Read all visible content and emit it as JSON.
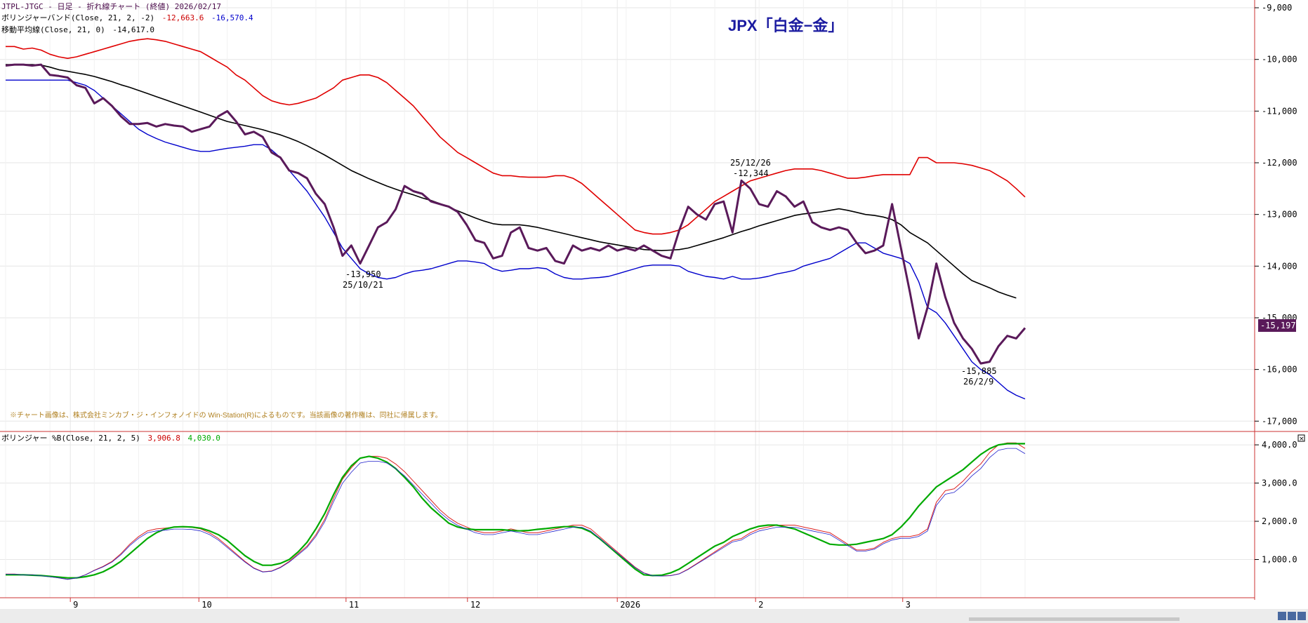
{
  "header": {
    "line1": "JTPL-JTGC - 日足 - 折れ線チャート (終値)  2026/02/17",
    "bb_label": "ボリンジャーバンド(Close, 21, 2, -2)",
    "bb_upper": "-12,663.6",
    "bb_lower": "-16,570.4",
    "ma_label": "移動平均線(Close, 21, 0)",
    "ma_value": "-14,617.0",
    "lower_label": "ボリンジャー %B(Close, 21, 2, 5)",
    "lower_v1": "3,906.8",
    "lower_v2": "4,030.0"
  },
  "title": "JPX「白金−金」",
  "copyright": "※チャート画像は、株式会社ミンカブ・ジ・インフォノイドの Win-Station(R)によるものです。当該画像の著作権は、同社に帰属します。",
  "last_price_badge": "-15,197",
  "annotations": {
    "low1_value": "-13,950",
    "low1_date": "25/10/21",
    "high_date": "25/12/26",
    "high_value": "-12,344",
    "low2_value": "-15,885",
    "low2_date": "26/2/9"
  },
  "colors": {
    "price": "#5a1a5a",
    "upper_band": "#e00000",
    "lower_band": "#0000cc",
    "moving_average": "#000000",
    "pctb_fast": "#dd2222",
    "pctb_slow": "#00aa00",
    "title": "#1a1aa0",
    "copyright": "#b08020"
  },
  "chart_data": [
    {
      "type": "line",
      "ylim": [
        -17200,
        -8850
      ],
      "yticks": [
        -9000,
        -10000,
        -11000,
        -12000,
        -13000,
        -14000,
        -15000,
        -16000,
        -17000
      ],
      "ytick_labels": [
        "-9,000",
        "-10,000",
        "-11,000",
        "-12,000",
        "-13,000",
        "-14,000",
        "-15,000",
        "-16,000",
        "-17,000"
      ],
      "x_labels": [
        "9",
        "10",
        "11",
        "12",
        "2026",
        "2",
        "3"
      ],
      "series": [
        {
          "key": "price",
          "values": [
            -10120,
            -10100,
            -10100,
            -10120,
            -10100,
            -10300,
            -10320,
            -10350,
            -10500,
            -10550,
            -10850,
            -10750,
            -10900,
            -11100,
            -11250,
            -11250,
            -11230,
            -11300,
            -11250,
            -11280,
            -11300,
            -11400,
            -11350,
            -11300,
            -11100,
            -11000,
            -11200,
            -11450,
            -11400,
            -11500,
            -11800,
            -11900,
            -12150,
            -12200,
            -12300,
            -12600,
            -12800,
            -13250,
            -13800,
            -13600,
            -13950,
            -13600,
            -13250,
            -13150,
            -12900,
            -12450,
            -12550,
            -12600,
            -12750,
            -12800,
            -12850,
            -12950,
            -13200,
            -13500,
            -13550,
            -13850,
            -13800,
            -13350,
            -13250,
            -13650,
            -13700,
            -13650,
            -13900,
            -13950,
            -13600,
            -13700,
            -13650,
            -13700,
            -13600,
            -13700,
            -13650,
            -13700,
            -13600,
            -13700,
            -13800,
            -13850,
            -13300,
            -12850,
            -13000,
            -13100,
            -12800,
            -12750,
            -13350,
            -12344,
            -12500,
            -12800,
            -12850,
            -12550,
            -12650,
            -12850,
            -12750,
            -13150,
            -13250,
            -13300,
            -13250,
            -13300,
            -13550,
            -13750,
            -13700,
            -13600,
            -12800,
            -13650,
            -14500,
            -15400,
            -14800,
            -13950,
            -14600,
            -15100,
            -15400,
            -15600,
            -15885,
            -15850,
            -15550,
            -15350,
            -15400,
            -15197
          ]
        },
        {
          "key": "upper_band",
          "values": [
            -9750,
            -9750,
            -9800,
            -9780,
            -9820,
            -9900,
            -9950,
            -9980,
            -9950,
            -9900,
            -9850,
            -9800,
            -9750,
            -9700,
            -9650,
            -9620,
            -9600,
            -9620,
            -9650,
            -9700,
            -9750,
            -9800,
            -9850,
            -9950,
            -10050,
            -10150,
            -10300,
            -10400,
            -10550,
            -10700,
            -10800,
            -10850,
            -10880,
            -10850,
            -10800,
            -10750,
            -10650,
            -10550,
            -10400,
            -10350,
            -10300,
            -10300,
            -10350,
            -10450,
            -10600,
            -10750,
            -10900,
            -11100,
            -11300,
            -11500,
            -11650,
            -11800,
            -11900,
            -12000,
            -12100,
            -12200,
            -12250,
            -12250,
            -12270,
            -12280,
            -12280,
            -12280,
            -12250,
            -12250,
            -12300,
            -12400,
            -12550,
            -12700,
            -12850,
            -13000,
            -13150,
            -13300,
            -13350,
            -13380,
            -13380,
            -13350,
            -13300,
            -13200,
            -13050,
            -12900,
            -12750,
            -12650,
            -12550,
            -12450,
            -12350,
            -12300,
            -12250,
            -12200,
            -12150,
            -12120,
            -12120,
            -12120,
            -12150,
            -12200,
            -12250,
            -12300,
            -12300,
            -12280,
            -12250,
            -12230,
            -12230,
            -12230,
            -12230,
            -11900,
            -11900,
            -12000,
            -12000,
            -12000,
            -12020,
            -12050,
            -12100,
            -12150,
            -12250,
            -12350,
            -12500,
            -12663
          ]
        },
        {
          "key": "moving_average",
          "values": [
            -10100,
            -10100,
            -10100,
            -10100,
            -10110,
            -10150,
            -10200,
            -10230,
            -10260,
            -10290,
            -10330,
            -10380,
            -10430,
            -10490,
            -10540,
            -10600,
            -10660,
            -10720,
            -10780,
            -10840,
            -10900,
            -10960,
            -11020,
            -11080,
            -11140,
            -11200,
            -11240,
            -11280,
            -11320,
            -11360,
            -11410,
            -11460,
            -11520,
            -11590,
            -11670,
            -11760,
            -11850,
            -11950,
            -12050,
            -12150,
            -12230,
            -12310,
            -12380,
            -12450,
            -12510,
            -12570,
            -12620,
            -12680,
            -12730,
            -12790,
            -12860,
            -12930,
            -13000,
            -13070,
            -13130,
            -13180,
            -13200,
            -13200,
            -13200,
            -13220,
            -13250,
            -13290,
            -13330,
            -13370,
            -13410,
            -13450,
            -13490,
            -13530,
            -13560,
            -13590,
            -13620,
            -13650,
            -13680,
            -13690,
            -13700,
            -13690,
            -13680,
            -13650,
            -13600,
            -13550,
            -13500,
            -13450,
            -13390,
            -13330,
            -13280,
            -13220,
            -13170,
            -13120,
            -13070,
            -13020,
            -12990,
            -12970,
            -12950,
            -12920,
            -12890,
            -12920,
            -12960,
            -13000,
            -13020,
            -13050,
            -13100,
            -13200,
            -13350,
            -13450,
            -13550,
            -13700,
            -13850,
            -14000,
            -14150,
            -14280,
            -14350,
            -14420,
            -14500,
            -14560,
            -14617
          ]
        },
        {
          "key": "lower_band",
          "values": [
            -10400,
            -10400,
            -10400,
            -10400,
            -10400,
            -10400,
            -10400,
            -10400,
            -10450,
            -10500,
            -10600,
            -10750,
            -10900,
            -11050,
            -11200,
            -11350,
            -11450,
            -11530,
            -11600,
            -11650,
            -11700,
            -11750,
            -11780,
            -11780,
            -11750,
            -11720,
            -11700,
            -11680,
            -11650,
            -11650,
            -11750,
            -11900,
            -12150,
            -12350,
            -12550,
            -12800,
            -13050,
            -13350,
            -13650,
            -13850,
            -14050,
            -14150,
            -14220,
            -14250,
            -14220,
            -14150,
            -14100,
            -14080,
            -14050,
            -14000,
            -13950,
            -13900,
            -13900,
            -13920,
            -13950,
            -14050,
            -14100,
            -14080,
            -14050,
            -14050,
            -14030,
            -14050,
            -14150,
            -14220,
            -14250,
            -14250,
            -14230,
            -14220,
            -14200,
            -14150,
            -14100,
            -14050,
            -14000,
            -13980,
            -13980,
            -13980,
            -14000,
            -14100,
            -14150,
            -14200,
            -14220,
            -14250,
            -14200,
            -14250,
            -14250,
            -14230,
            -14200,
            -14150,
            -14120,
            -14080,
            -14000,
            -13950,
            -13900,
            -13850,
            -13750,
            -13650,
            -13550,
            -13550,
            -13650,
            -13750,
            -13800,
            -13850,
            -13950,
            -14300,
            -14800,
            -14900,
            -15100,
            -15350,
            -15600,
            -15850,
            -16000,
            -16100,
            -16250,
            -16400,
            -16500,
            -16570
          ]
        }
      ]
    },
    {
      "type": "line",
      "ylim": [
        0,
        4350
      ],
      "yticks": [
        1000,
        2000,
        3000,
        4000
      ],
      "ytick_labels": [
        "1,000.0",
        "2,000.0",
        "3,000.0",
        "4,000.0"
      ],
      "series": [
        {
          "key": "pctb_fast",
          "values": [
            620,
            620,
            600,
            600,
            580,
            550,
            520,
            480,
            520,
            600,
            720,
            820,
            950,
            1150,
            1400,
            1600,
            1750,
            1800,
            1820,
            1850,
            1850,
            1840,
            1800,
            1700,
            1550,
            1350,
            1150,
            950,
            780,
            680,
            700,
            800,
            950,
            1150,
            1350,
            1650,
            2050,
            2600,
            3100,
            3400,
            3650,
            3700,
            3700,
            3650,
            3500,
            3300,
            3050,
            2800,
            2550,
            2300,
            2100,
            1950,
            1850,
            1750,
            1700,
            1700,
            1750,
            1800,
            1750,
            1700,
            1700,
            1750,
            1800,
            1850,
            1900,
            1900,
            1800,
            1600,
            1400,
            1200,
            1000,
            800,
            650,
            580,
            570,
            580,
            630,
            750,
            900,
            1050,
            1200,
            1350,
            1500,
            1550,
            1700,
            1800,
            1850,
            1900,
            1900,
            1900,
            1850,
            1800,
            1750,
            1700,
            1550,
            1400,
            1250,
            1250,
            1300,
            1450,
            1550,
            1600,
            1600,
            1650,
            1800,
            2500,
            2800,
            2850,
            3050,
            3300,
            3500,
            3800,
            4000,
            4050,
            4050,
            3906
          ]
        },
        {
          "key": "pctb_slow",
          "values": [
            600,
            600,
            600,
            590,
            580,
            560,
            540,
            520,
            520,
            550,
            600,
            680,
            800,
            950,
            1150,
            1350,
            1550,
            1700,
            1800,
            1850,
            1860,
            1850,
            1820,
            1750,
            1650,
            1500,
            1300,
            1100,
            950,
            850,
            850,
            900,
            1000,
            1200,
            1450,
            1800,
            2200,
            2700,
            3150,
            3450,
            3650,
            3700,
            3650,
            3550,
            3380,
            3150,
            2900,
            2600,
            2350,
            2150,
            1950,
            1850,
            1800,
            1780,
            1780,
            1780,
            1780,
            1760,
            1750,
            1760,
            1790,
            1810,
            1840,
            1860,
            1860,
            1820,
            1720,
            1550,
            1350,
            1150,
            950,
            750,
            600,
            580,
            590,
            650,
            750,
            900,
            1050,
            1200,
            1350,
            1450,
            1600,
            1700,
            1800,
            1870,
            1900,
            1900,
            1850,
            1800,
            1700,
            1600,
            1500,
            1400,
            1380,
            1380,
            1400,
            1450,
            1500,
            1550,
            1650,
            1850,
            2100,
            2400,
            2650,
            2900,
            3050,
            3200,
            3350,
            3550,
            3750,
            3900,
            4000,
            4030,
            4030,
            4030
          ]
        }
      ]
    }
  ]
}
